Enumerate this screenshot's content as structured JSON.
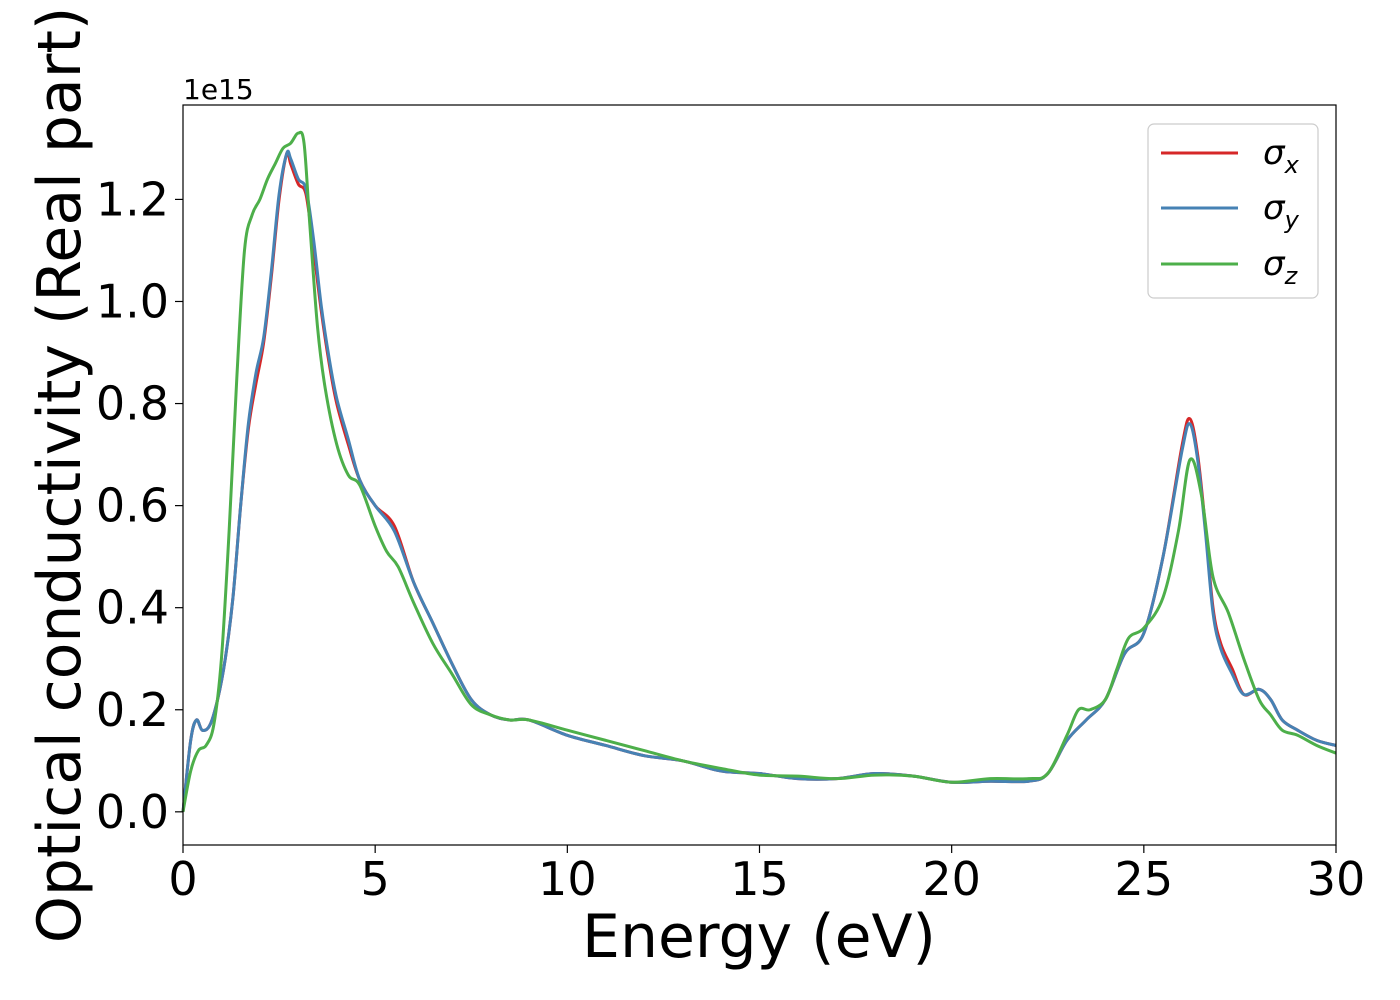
{
  "chart_data": {
    "type": "line",
    "title": "",
    "xlabel": "Energy (eV)",
    "ylabel": "Optical conductivity (Real part)",
    "y_offset_label": "1e15",
    "xlim": [
      0,
      30
    ],
    "ylim": [
      -0.065,
      1.385
    ],
    "x_ticks": [
      0,
      5,
      10,
      15,
      20,
      25,
      30
    ],
    "x_tick_labels": [
      "0",
      "5",
      "10",
      "15",
      "20",
      "25",
      "30"
    ],
    "y_ticks": [
      0.0,
      0.2,
      0.4,
      0.6,
      0.8,
      1.0,
      1.2
    ],
    "y_tick_labels": [
      "0.0",
      "0.2",
      "0.4",
      "0.6",
      "0.8",
      "1.0",
      "1.2"
    ],
    "grid": false,
    "legend_position": "top-right",
    "series": [
      {
        "name": "σx",
        "symbol": "σ",
        "subscript": "x",
        "color": "#d62728",
        "x": [
          0,
          0.2,
          0.35,
          0.5,
          0.7,
          0.9,
          1.1,
          1.3,
          1.5,
          1.7,
          1.9,
          2.1,
          2.3,
          2.5,
          2.7,
          2.8,
          3.0,
          3.2,
          3.4,
          3.6,
          3.8,
          4.0,
          4.3,
          4.6,
          5.0,
          5.5,
          6.0,
          6.5,
          7.0,
          7.5,
          8.0,
          8.5,
          9.0,
          10.0,
          11.0,
          12.0,
          13.0,
          14.0,
          15.0,
          16.0,
          17.0,
          18.0,
          19.0,
          20.0,
          21.0,
          22.0,
          22.5,
          23.0,
          23.5,
          24.0,
          24.5,
          25.0,
          25.5,
          26.0,
          26.2,
          26.4,
          26.6,
          26.8,
          27.0,
          27.3,
          27.6,
          28.0,
          28.3,
          28.6,
          29.0,
          29.5,
          30.0
        ],
        "y": [
          0.0,
          0.14,
          0.18,
          0.16,
          0.17,
          0.22,
          0.3,
          0.42,
          0.6,
          0.75,
          0.84,
          0.92,
          1.05,
          1.2,
          1.29,
          1.27,
          1.23,
          1.21,
          1.1,
          0.98,
          0.88,
          0.8,
          0.72,
          0.65,
          0.6,
          0.56,
          0.45,
          0.37,
          0.29,
          0.22,
          0.19,
          0.18,
          0.18,
          0.15,
          0.13,
          0.11,
          0.1,
          0.08,
          0.075,
          0.065,
          0.065,
          0.075,
          0.07,
          0.058,
          0.06,
          0.06,
          0.075,
          0.14,
          0.18,
          0.22,
          0.31,
          0.35,
          0.5,
          0.72,
          0.77,
          0.7,
          0.56,
          0.4,
          0.33,
          0.28,
          0.23,
          0.24,
          0.22,
          0.18,
          0.16,
          0.14,
          0.13
        ]
      },
      {
        "name": "σy",
        "symbol": "σ",
        "subscript": "y",
        "color": "#4682b4",
        "x": [
          0,
          0.2,
          0.35,
          0.5,
          0.7,
          0.9,
          1.1,
          1.3,
          1.5,
          1.7,
          1.9,
          2.1,
          2.3,
          2.5,
          2.7,
          2.8,
          3.0,
          3.2,
          3.4,
          3.6,
          3.8,
          4.0,
          4.3,
          4.6,
          5.0,
          5.5,
          6.0,
          6.5,
          7.0,
          7.5,
          8.0,
          8.5,
          9.0,
          10.0,
          11.0,
          12.0,
          13.0,
          14.0,
          15.0,
          16.0,
          17.0,
          18.0,
          19.0,
          20.0,
          21.0,
          22.0,
          22.5,
          23.0,
          23.5,
          24.0,
          24.5,
          25.0,
          25.5,
          26.0,
          26.2,
          26.4,
          26.6,
          26.8,
          27.0,
          27.3,
          27.6,
          28.0,
          28.3,
          28.6,
          29.0,
          29.5,
          30.0
        ],
        "y": [
          0.0,
          0.14,
          0.18,
          0.16,
          0.17,
          0.22,
          0.3,
          0.42,
          0.6,
          0.76,
          0.86,
          0.93,
          1.06,
          1.21,
          1.29,
          1.28,
          1.24,
          1.22,
          1.12,
          0.99,
          0.89,
          0.81,
          0.73,
          0.65,
          0.6,
          0.55,
          0.45,
          0.37,
          0.29,
          0.22,
          0.19,
          0.18,
          0.18,
          0.15,
          0.13,
          0.11,
          0.1,
          0.08,
          0.075,
          0.065,
          0.065,
          0.075,
          0.07,
          0.058,
          0.06,
          0.06,
          0.075,
          0.14,
          0.18,
          0.22,
          0.31,
          0.35,
          0.5,
          0.71,
          0.76,
          0.69,
          0.55,
          0.39,
          0.32,
          0.27,
          0.23,
          0.24,
          0.22,
          0.18,
          0.16,
          0.14,
          0.13
        ]
      },
      {
        "name": "σz",
        "symbol": "σ",
        "subscript": "z",
        "color": "#4daf4a",
        "x": [
          0,
          0.2,
          0.4,
          0.6,
          0.8,
          1.0,
          1.2,
          1.4,
          1.6,
          1.8,
          2.0,
          2.2,
          2.4,
          2.6,
          2.8,
          3.0,
          3.15,
          3.3,
          3.5,
          3.7,
          4.0,
          4.3,
          4.6,
          5.0,
          5.3,
          5.6,
          6.0,
          6.5,
          7.0,
          7.5,
          8.0,
          8.5,
          9.0,
          10.0,
          11.0,
          12.0,
          13.0,
          14.0,
          15.0,
          16.0,
          17.0,
          18.0,
          19.0,
          20.0,
          21.0,
          22.0,
          22.5,
          23.0,
          23.3,
          23.6,
          24.0,
          24.3,
          24.6,
          25.0,
          25.5,
          25.9,
          26.2,
          26.5,
          26.8,
          27.2,
          27.6,
          28.0,
          28.3,
          28.6,
          29.0,
          29.5,
          30.0
        ],
        "y": [
          0.0,
          0.08,
          0.12,
          0.13,
          0.17,
          0.3,
          0.55,
          0.85,
          1.1,
          1.17,
          1.2,
          1.24,
          1.27,
          1.3,
          1.31,
          1.33,
          1.31,
          1.15,
          0.95,
          0.83,
          0.72,
          0.66,
          0.64,
          0.56,
          0.51,
          0.48,
          0.41,
          0.33,
          0.27,
          0.21,
          0.19,
          0.18,
          0.18,
          0.16,
          0.14,
          0.12,
          0.1,
          0.085,
          0.072,
          0.07,
          0.065,
          0.072,
          0.07,
          0.058,
          0.065,
          0.065,
          0.075,
          0.15,
          0.2,
          0.2,
          0.22,
          0.28,
          0.34,
          0.36,
          0.42,
          0.55,
          0.69,
          0.62,
          0.46,
          0.39,
          0.3,
          0.22,
          0.19,
          0.16,
          0.15,
          0.13,
          0.115
        ]
      }
    ]
  }
}
